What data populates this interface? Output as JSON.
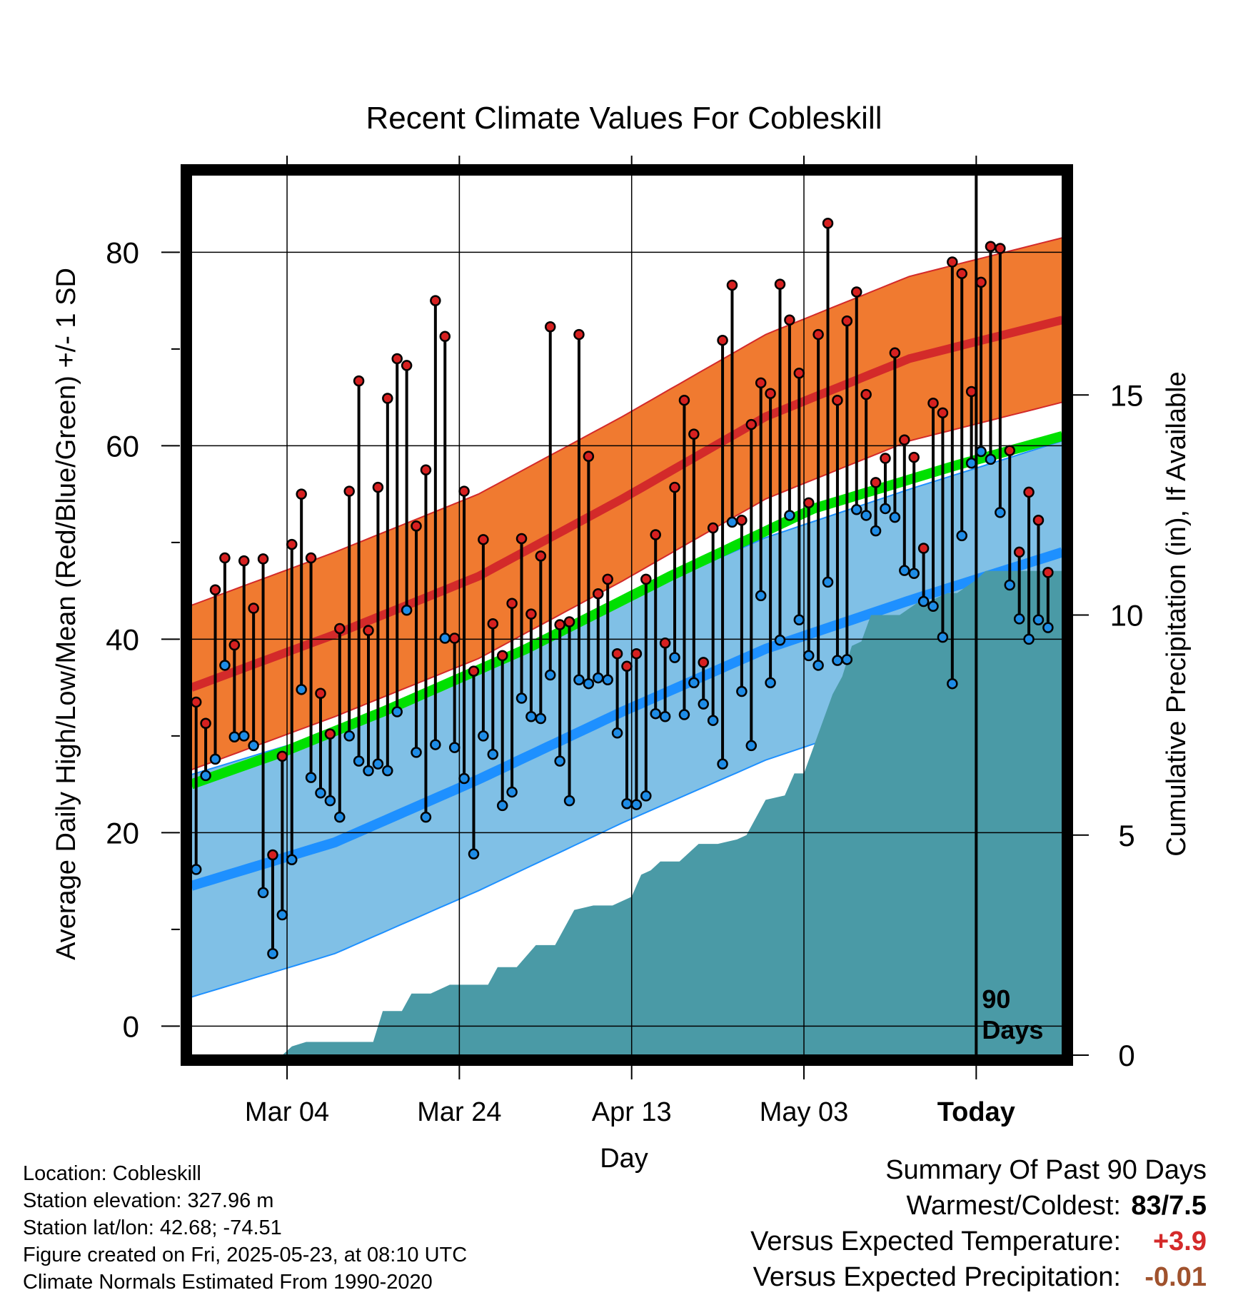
{
  "chart_data": {
    "type": "line",
    "title": "Recent Climate Values For Cobleskill",
    "xlabel": "Day",
    "ylabel": "Average Daily High/Low/Mean (Red/Blue/Green) +/- 1 SD",
    "y2label": "Cumulative Precipitation (in), If Available",
    "ylim": [
      -3,
      88
    ],
    "y2lim": [
      0,
      20
    ],
    "xlim": [
      0,
      91
    ],
    "x_tick_positions": [
      10,
      28,
      46,
      64,
      82
    ],
    "x_tick_labels": [
      "Mar 04",
      "Mar 24",
      "Apr 13",
      "May 03",
      "Today"
    ],
    "y_ticks": [
      0,
      20,
      40,
      60,
      80
    ],
    "y2_ticks": [
      0,
      5,
      10,
      15
    ],
    "grid": true,
    "today_marker": {
      "x": 82,
      "label_line1": "90",
      "label_line2": "Days"
    },
    "normal_high": {
      "x": [
        0,
        15,
        30,
        45,
        60,
        75,
        91
      ],
      "mean": [
        35,
        40.5,
        46.5,
        54.5,
        63,
        69,
        73
      ],
      "sd": 8.5
    },
    "normal_low": {
      "x": [
        0,
        15,
        30,
        45,
        60,
        75,
        91
      ],
      "mean": [
        14.5,
        19,
        25.5,
        32.5,
        39,
        44,
        49
      ],
      "sd": 11.5
    },
    "normal_mean": {
      "x": [
        0,
        10,
        20,
        35,
        50,
        65,
        80,
        91
      ],
      "mean": [
        25,
        28.5,
        32.5,
        39,
        46.5,
        53.5,
        58,
        61
      ]
    },
    "daily_high": [
      33.5,
      31.3,
      45.1,
      48.4,
      39.4,
      48.1,
      43.2,
      48.3,
      17.7,
      27.9,
      49.8,
      55.0,
      48.4,
      34.4,
      30.2,
      41.1,
      55.3,
      66.7,
      40.9,
      55.7,
      64.9,
      69.0,
      68.3,
      51.7,
      57.5,
      75.0,
      71.3,
      40.1,
      55.3,
      36.7,
      50.3,
      41.6,
      38.3,
      43.7,
      50.4,
      42.6,
      48.6,
      72.3,
      41.5,
      41.8,
      71.5,
      58.9,
      44.7,
      46.2,
      38.5,
      37.2,
      38.5,
      46.2,
      50.8,
      39.6,
      55.7,
      64.7,
      61.2,
      37.6,
      51.5,
      70.9,
      76.6,
      52.3,
      62.2,
      66.5,
      65.4,
      76.7,
      73.0,
      67.5,
      54.1,
      71.5,
      83.0,
      64.7,
      72.9,
      75.9,
      65.3,
      56.2,
      58.7,
      69.6,
      60.6,
      58.8,
      49.4,
      64.4,
      63.4,
      79.0,
      77.8,
      65.6,
      76.9,
      80.6,
      80.4,
      59.5,
      49.0,
      55.2,
      52.3,
      46.9
    ],
    "daily_low": [
      16.2,
      25.9,
      27.6,
      37.3,
      29.9,
      30.0,
      29.0,
      13.8,
      7.5,
      11.5,
      17.2,
      34.8,
      25.7,
      24.1,
      23.3,
      21.6,
      30.0,
      27.4,
      26.4,
      27.1,
      26.4,
      32.5,
      43.0,
      28.3,
      21.6,
      29.1,
      40.1,
      28.8,
      25.6,
      17.8,
      30.0,
      28.1,
      22.8,
      24.2,
      33.9,
      32.0,
      31.8,
      36.3,
      27.4,
      23.3,
      35.8,
      35.4,
      36.0,
      35.8,
      30.3,
      23.0,
      22.9,
      23.8,
      32.3,
      32.0,
      38.1,
      32.2,
      35.5,
      33.3,
      31.6,
      27.1,
      52.1,
      34.6,
      29.0,
      44.5,
      35.5,
      39.9,
      52.8,
      42.0,
      38.3,
      37.3,
      45.9,
      37.8,
      37.9,
      53.4,
      52.8,
      51.2,
      53.5,
      52.6,
      47.1,
      46.8,
      43.9,
      43.4,
      40.2,
      35.4,
      50.7,
      58.2,
      59.4,
      58.6,
      53.1,
      45.6,
      42.1,
      40.0,
      42.0,
      41.2
    ],
    "cumulative_precip": {
      "x": [
        0,
        9.5,
        10.5,
        12,
        15,
        19,
        20,
        22,
        23,
        25,
        27,
        28,
        31,
        32,
        34,
        36,
        38,
        40,
        42,
        44,
        46,
        47,
        48,
        49,
        51,
        53,
        55,
        57,
        58,
        60,
        62,
        63,
        64,
        65,
        66,
        67,
        68,
        69,
        70,
        71,
        72,
        73,
        74,
        76,
        77,
        78,
        79,
        80,
        82,
        83,
        91
      ],
      "values": [
        0,
        0,
        0.2,
        0.3,
        0.3,
        0.3,
        1.0,
        1.0,
        1.4,
        1.4,
        1.6,
        1.6,
        1.6,
        2.0,
        2.0,
        2.5,
        2.5,
        3.3,
        3.4,
        3.4,
        3.6,
        4.1,
        4.2,
        4.4,
        4.4,
        4.8,
        4.8,
        4.9,
        5.0,
        5.8,
        5.9,
        6.4,
        6.4,
        7.0,
        7.6,
        8.2,
        8.6,
        9.3,
        9.4,
        10.0,
        10.0,
        10.0,
        10.0,
        10.3,
        10.3,
        10.4,
        10.5,
        10.5,
        10.8,
        11.0,
        11.0
      ]
    },
    "colors": {
      "high_band": "#f07a30",
      "high_mean": "#d32a2a",
      "low_band": "#80c0e6",
      "low_mean": "#1e90ff",
      "mean_line": "#00e000",
      "precip": "#4a9aa6",
      "high_dot": "#d62020",
      "low_dot": "#1e8ce6"
    }
  },
  "station_info": [
    "Location: Cobleskill",
    "Station elevation: 327.96 m",
    "Station lat/lon: 42.68; -74.51",
    "Figure created on Fri, 2025-05-23, at 08:10 UTC",
    "Climate Normals Estimated From 1990-2020"
  ],
  "summary": {
    "heading": "Summary Of Past 90 Days",
    "rows": [
      {
        "label": "Warmest/Coldest:",
        "value": "83/7.5",
        "color": "#000000"
      },
      {
        "label": "Versus Expected Temperature:",
        "value": "+3.9",
        "color": "#d42a2a"
      },
      {
        "label": "Versus Expected Precipitation:",
        "value": "-0.01",
        "color": "#a0522d"
      }
    ]
  }
}
